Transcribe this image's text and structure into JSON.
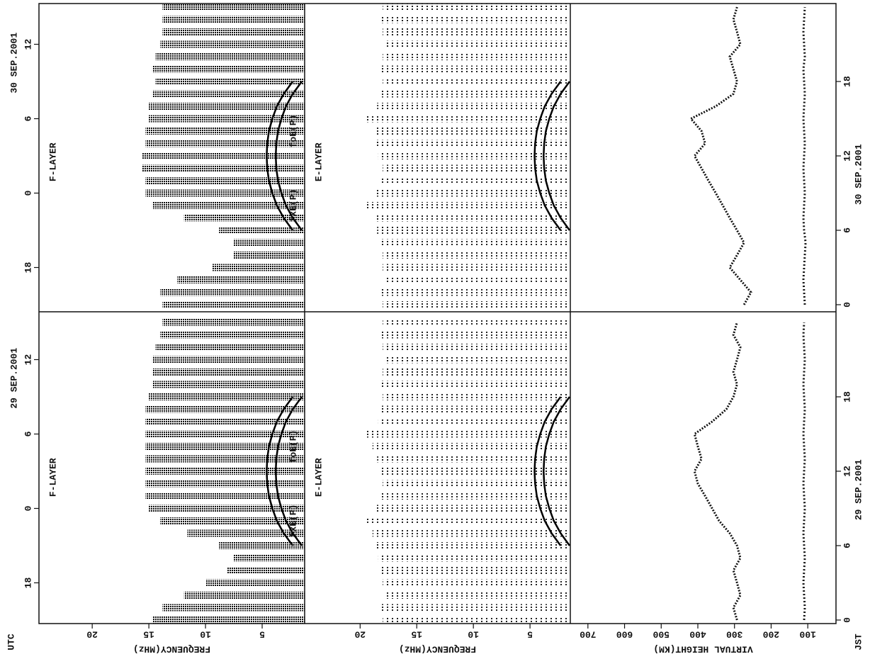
{
  "chart_data": {
    "type": "ionogram",
    "time": {
      "utc_label": "UTC",
      "jst_label": "JST",
      "ylim": [
        0,
        24
      ],
      "hours": [
        0,
        1,
        2,
        3,
        4,
        5,
        6,
        7,
        8,
        9,
        10,
        11,
        12,
        13,
        14,
        15,
        16,
        17,
        18,
        19,
        20,
        21,
        22,
        23,
        24
      ],
      "utc_ticks": [
        {
          "value": 3,
          "label": "18"
        },
        {
          "value": 9,
          "label": "0"
        },
        {
          "value": 15,
          "label": "6"
        },
        {
          "value": 21,
          "label": "12"
        }
      ],
      "jst_ticks": [
        0,
        6,
        12,
        18
      ]
    },
    "panels": [
      {
        "title": "F-LAYER",
        "x_label": "FREQUENCY(MHz)",
        "xlim": [
          24.7,
          1.25
        ],
        "xticks": [
          5,
          10,
          15,
          20
        ]
      },
      {
        "title": "E-LAYER",
        "x_label": "FREQUENCY(MHz)",
        "xlim": [
          24.9,
          1.44
        ],
        "xticks": [
          5,
          10,
          15,
          20
        ]
      },
      {
        "x_label": "VIRTUAL HEIGHT(KM)",
        "xlim": [
          748,
          23
        ],
        "xticks": [
          100,
          200,
          300,
          400,
          500,
          600,
          700
        ]
      }
    ],
    "annotations": [
      "fxE(P)",
      "foE(P)"
    ],
    "days": [
      {
        "title": "30 SEP.2001",
        "f_max": [
          13.8,
          14,
          12.5,
          9.4,
          7.5,
          7.5,
          8.8,
          11.9,
          14.7,
          15.3,
          15.3,
          15.6,
          15.6,
          15.3,
          15.3,
          15,
          15,
          14.7,
          14.4,
          14.7,
          14.4,
          14,
          13.8,
          13.8,
          13.8
        ],
        "e_max": [
          18,
          18.2,
          17.8,
          18,
          18,
          18.3,
          18.5,
          18.8,
          19.5,
          18.6,
          18.2,
          18,
          18.4,
          18.6,
          18.8,
          19.6,
          18.5,
          18.2,
          18,
          18.3,
          18,
          17.8,
          18,
          18.1,
          18
        ],
        "hf": [
          274,
          255,
          284,
          313,
          293,
          274,
          293,
          313,
          332,
          351,
          371,
          390,
          409,
          380,
          390,
          419,
          351,
          303,
          293,
          303,
          313,
          284,
          293,
          303,
          293
        ],
        "he": [
          108,
          110,
          112,
          110,
          108,
          106,
          110,
          112,
          110,
          108,
          110,
          112,
          110,
          108,
          110,
          112,
          110,
          108,
          110,
          112,
          108,
          110,
          112,
          110,
          108
        ],
        "foE": [
          null,
          null,
          null,
          null,
          null,
          null,
          1.5,
          2.3,
          2.9,
          3.3,
          3.6,
          3.75,
          3.8,
          3.75,
          3.6,
          3.3,
          2.9,
          2.3,
          1.5,
          null,
          null,
          null,
          null,
          null,
          null
        ],
        "fxE": [
          null,
          null,
          null,
          null,
          null,
          null,
          2.3,
          3.1,
          3.7,
          4.1,
          4.4,
          4.55,
          4.6,
          4.55,
          4.4,
          4.1,
          3.7,
          3.1,
          2.3,
          null,
          null,
          null,
          null,
          null,
          null
        ]
      },
      {
        "title": "29 SEP.2001",
        "f_max": [
          14.7,
          13.8,
          11.9,
          10,
          8.1,
          7.5,
          8.8,
          11.6,
          14,
          15,
          15.3,
          15.3,
          15.3,
          15.3,
          15.3,
          15.3,
          15.3,
          15.3,
          15,
          14.7,
          14.7,
          14.7,
          14.4,
          14,
          13.8
        ],
        "e_max": [
          18,
          18.1,
          17.9,
          18,
          18.2,
          18.4,
          18.6,
          18.9,
          19.4,
          18.7,
          18.3,
          18,
          18.3,
          18.5,
          18.9,
          19.5,
          18.4,
          18.1,
          18,
          18.2,
          18,
          17.9,
          18,
          18.1,
          18
        ],
        "hf": [
          293,
          303,
          284,
          293,
          303,
          284,
          293,
          313,
          342,
          361,
          380,
          400,
          409,
          390,
          400,
          409,
          361,
          322,
          303,
          293,
          303,
          293,
          284,
          303,
          293
        ],
        "he": [
          110,
          108,
          110,
          112,
          110,
          108,
          110,
          112,
          110,
          108,
          110,
          112,
          110,
          108,
          110,
          112,
          110,
          108,
          110,
          112,
          110,
          108,
          110,
          112,
          110
        ],
        "foE": [
          null,
          null,
          null,
          null,
          null,
          null,
          1.5,
          2.3,
          2.9,
          3.3,
          3.6,
          3.75,
          3.8,
          3.75,
          3.6,
          3.3,
          2.9,
          2.3,
          1.5,
          null,
          null,
          null,
          null,
          null,
          null
        ],
        "fxE": [
          null,
          null,
          null,
          null,
          null,
          null,
          2.3,
          3.1,
          3.7,
          4.1,
          4.4,
          4.55,
          4.6,
          4.55,
          4.4,
          4.1,
          3.7,
          3.1,
          2.3,
          null,
          null,
          null,
          null,
          null,
          null
        ]
      }
    ]
  }
}
